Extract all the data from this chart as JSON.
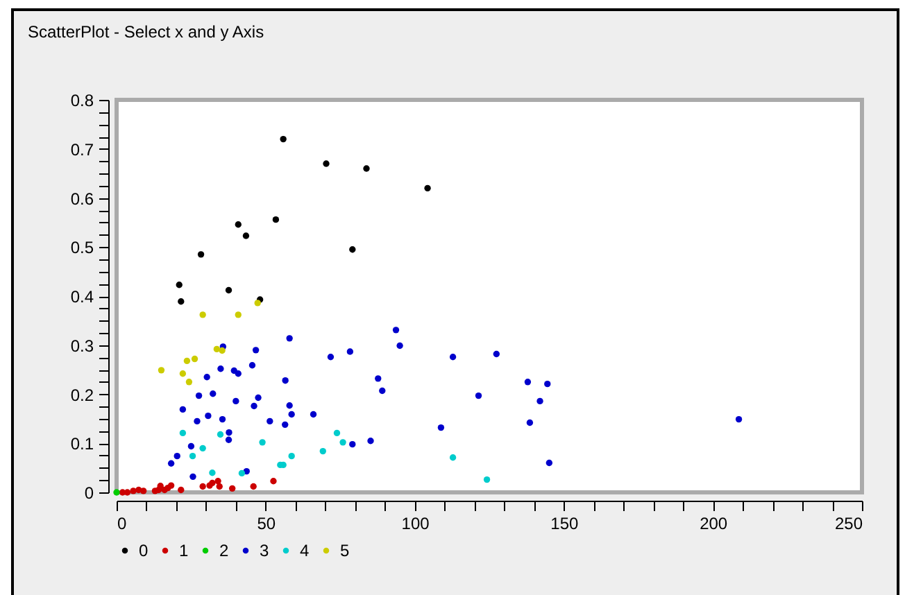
{
  "chart_data": {
    "type": "scatter",
    "title": "ScatterPlot - Select x and y Axis",
    "xlim": [
      0,
      250
    ],
    "ylim": [
      0,
      0.8
    ],
    "xticks": [
      0,
      {
        "value": 10,
        "label": null
      },
      {
        "value": 20,
        "label": null
      },
      {
        "value": 30,
        "label": null
      },
      {
        "value": 40,
        "label": null
      },
      50,
      {
        "value": 60,
        "label": null
      },
      {
        "value": 70,
        "label": null
      },
      {
        "value": 80,
        "label": null
      },
      {
        "value": 90,
        "label": null
      },
      100,
      {
        "value": 110,
        "label": null
      },
      {
        "value": 120,
        "label": null
      },
      {
        "value": 130,
        "label": null
      },
      {
        "value": 140,
        "label": null
      },
      150,
      {
        "value": 160,
        "label": null
      },
      {
        "value": 170,
        "label": null
      },
      {
        "value": 180,
        "label": null
      },
      {
        "value": 190,
        "label": null
      },
      200,
      {
        "value": 210,
        "label": null
      },
      {
        "value": 220,
        "label": null
      },
      {
        "value": 230,
        "label": null
      },
      {
        "value": 240,
        "label": null
      },
      250
    ],
    "yticks": [
      0,
      {
        "value": 0.025,
        "label": null
      },
      {
        "value": 0.05,
        "label": null
      },
      {
        "value": 0.075,
        "label": null
      },
      0.1,
      {
        "value": 0.125,
        "label": null
      },
      {
        "value": 0.15,
        "label": null
      },
      {
        "value": 0.175,
        "label": null
      },
      0.2,
      {
        "value": 0.225,
        "label": null
      },
      {
        "value": 0.25,
        "label": null
      },
      {
        "value": 0.275,
        "label": null
      },
      0.3,
      {
        "value": 0.325,
        "label": null
      },
      {
        "value": 0.35,
        "label": null
      },
      {
        "value": 0.375,
        "label": null
      },
      0.4,
      {
        "value": 0.425,
        "label": null
      },
      {
        "value": 0.45,
        "label": null
      },
      {
        "value": 0.475,
        "label": null
      },
      0.5,
      {
        "value": 0.525,
        "label": null
      },
      {
        "value": 0.55,
        "label": null
      },
      {
        "value": 0.575,
        "label": null
      },
      0.6,
      {
        "value": 0.625,
        "label": null
      },
      {
        "value": 0.65,
        "label": null
      },
      {
        "value": 0.675,
        "label": null
      },
      0.7,
      {
        "value": 0.725,
        "label": null
      },
      {
        "value": 0.75,
        "label": null
      },
      {
        "value": 0.775,
        "label": null
      },
      0.8
    ],
    "grid": false,
    "legend": "bottom",
    "marker": "circle",
    "series": [
      {
        "name": "0",
        "color": "#000000",
        "x": [
          55.9,
          70.3,
          83.8,
          104.3,
          40.8,
          53.4,
          43.4,
          79.1,
          28.3,
          21.0,
          21.6,
          37.6,
          48.1
        ],
        "values": [
          0.72,
          0.67,
          0.66,
          0.62,
          0.546,
          0.556,
          0.523,
          0.495,
          0.485,
          0.423,
          0.389,
          0.412,
          0.393
        ]
      },
      {
        "name": "1",
        "color": "#cc0000",
        "x": [
          2,
          3.6,
          5.6,
          7.4,
          9.0,
          12.9,
          14.1,
          14.7,
          16.1,
          17.2,
          18.3,
          21.6,
          28.9,
          31.2,
          32.1,
          34.0,
          34.5,
          38.8,
          45.9,
          52.6
        ],
        "values": [
          0,
          0,
          0.003,
          0.005,
          0.003,
          0.003,
          0.005,
          0.013,
          0.005,
          0.009,
          0.014,
          0.005,
          0.012,
          0.014,
          0.019,
          0.023,
          0.012,
          0.008,
          0.012,
          0.023
        ]
      },
      {
        "name": "2",
        "color": "#00cc00",
        "x": [
          0
        ],
        "values": [
          0
        ]
      },
      {
        "name": "3",
        "color": "#0000cc",
        "x": [
          35.7,
          58.0,
          46.7,
          71.8,
          78.3,
          45.5,
          34.9,
          39.4,
          40.8,
          30.3,
          56.6,
          32.3,
          27.6,
          40.0,
          47.5,
          46.1,
          58.0,
          58.7,
          22.2,
          30.7,
          35.5,
          66.0,
          51.4,
          56.5,
          27.0,
          37.7,
          37.6,
          25.0,
          20.3,
          18.3,
          25.6,
          43.6,
          79.1,
          93.7,
          95.0,
          112.8,
          127.4,
          87.7,
          89.1,
          137.9,
          144.5,
          121.4,
          142.0,
          138.6,
          108.8,
          85.2,
          208.7,
          145.1
        ],
        "values": [
          0.297,
          0.314,
          0.29,
          0.276,
          0.287,
          0.259,
          0.252,
          0.248,
          0.242,
          0.235,
          0.228,
          0.201,
          0.197,
          0.186,
          0.193,
          0.176,
          0.177,
          0.159,
          0.169,
          0.156,
          0.149,
          0.159,
          0.145,
          0.138,
          0.145,
          0.122,
          0.107,
          0.094,
          0.074,
          0.059,
          0.032,
          0.043,
          0.098,
          0.331,
          0.299,
          0.276,
          0.282,
          0.232,
          0.207,
          0.225,
          0.221,
          0.197,
          0.186,
          0.142,
          0.132,
          0.105,
          0.149,
          0.06
        ]
      },
      {
        "name": "4",
        "color": "#00cccc",
        "x": [
          22.2,
          34.8,
          25.5,
          28.9,
          48.9,
          58.7,
          54.9,
          55.9,
          69.2,
          73.9,
          75.9,
          32.1,
          42.0,
          112.8,
          124.2
        ],
        "values": [
          0.121,
          0.118,
          0.074,
          0.09,
          0.102,
          0.074,
          0.056,
          0.056,
          0.084,
          0.121,
          0.102,
          0.04,
          0.039,
          0.071,
          0.026
        ]
      },
      {
        "name": "5",
        "color": "#cccc00",
        "x": [
          47.3,
          28.9,
          40.8,
          33.6,
          35.4,
          23.6,
          26.2,
          15.0,
          22.2,
          24.3
        ],
        "values": [
          0.386,
          0.362,
          0.362,
          0.292,
          0.289,
          0.268,
          0.272,
          0.249,
          0.242,
          0.225
        ]
      }
    ]
  }
}
